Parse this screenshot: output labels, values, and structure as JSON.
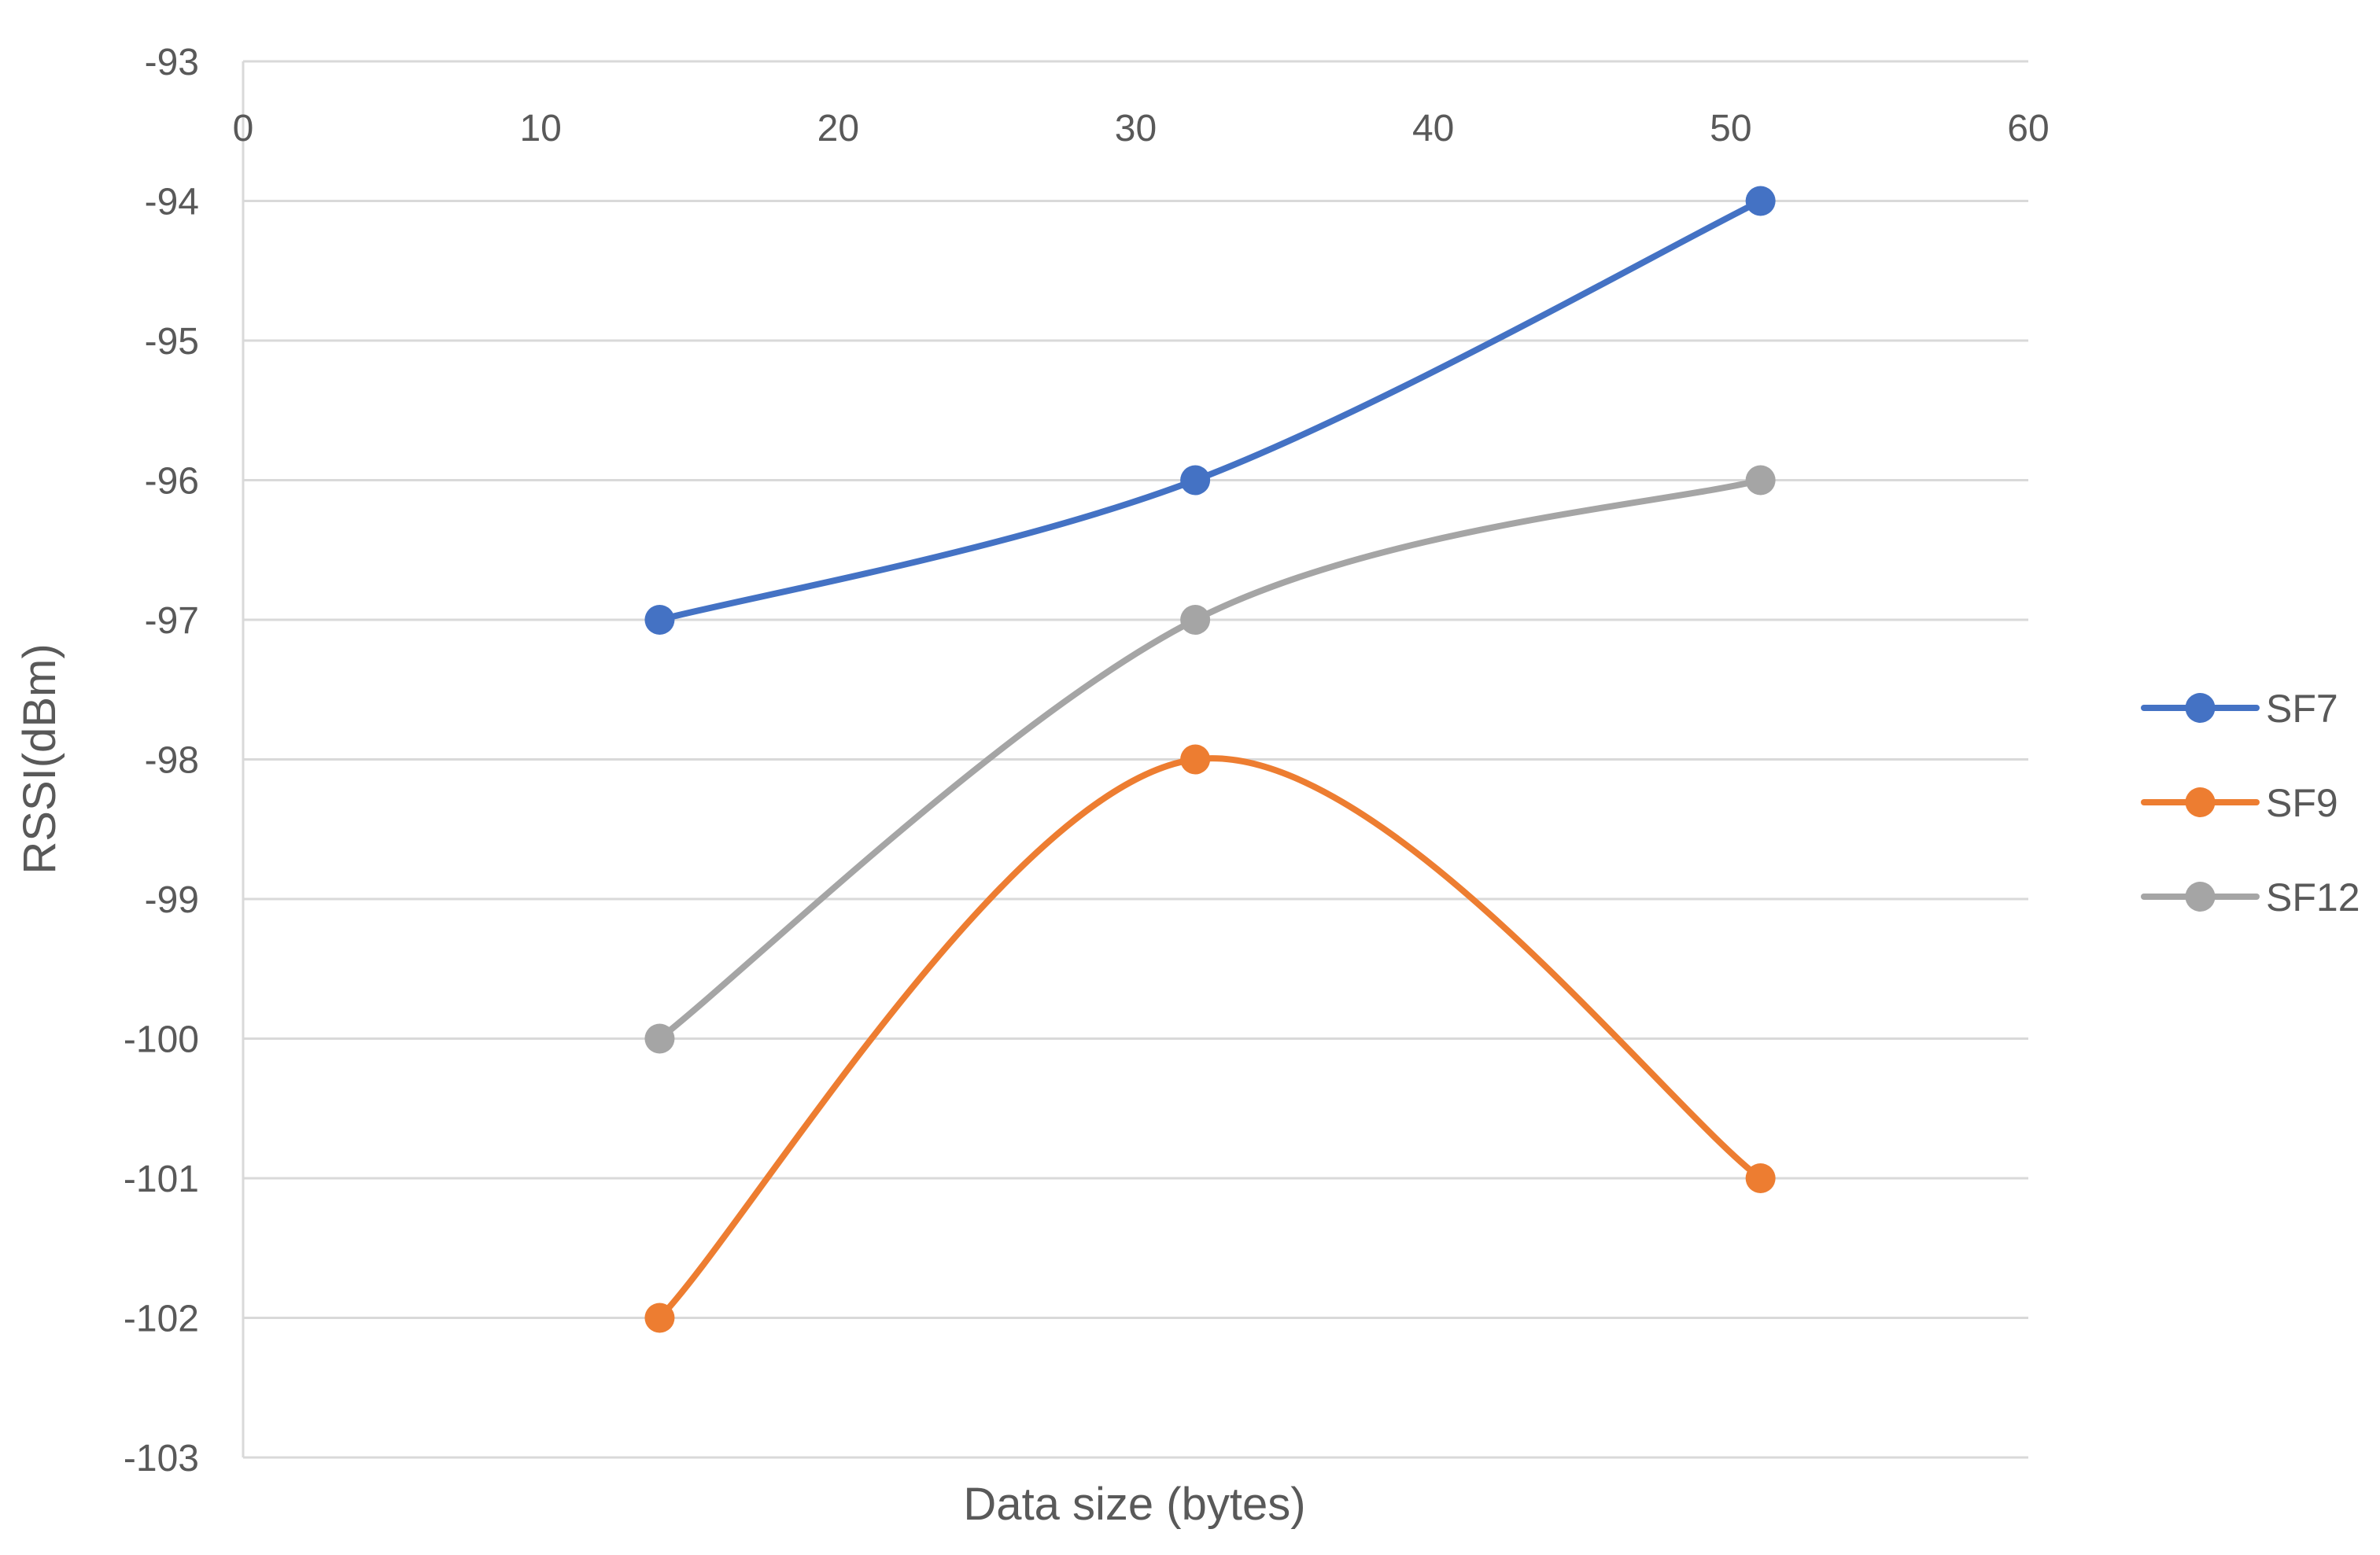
{
  "chart_data": {
    "type": "line",
    "smooth": true,
    "markers": "circle",
    "title": "",
    "xlabel": "Data size (bytes)",
    "ylabel": "RSSI(dBm)",
    "xlim": [
      0,
      60
    ],
    "ylim": [
      -103,
      -93
    ],
    "x_ticks": [
      "0",
      "10",
      "20",
      "30",
      "40",
      "50",
      "60"
    ],
    "y_ticks": [
      "-93",
      "-94",
      "-95",
      "-96",
      "-97",
      "-98",
      "-99",
      "-100",
      "-101",
      "-102",
      "-103"
    ],
    "x_axis_position": "top",
    "grid": "horizontal",
    "legend_position": "right",
    "series": [
      {
        "name": "SF7",
        "color": "#4472C4",
        "x": [
          14,
          32,
          51
        ],
        "y": [
          -97,
          -96,
          -94
        ]
      },
      {
        "name": "SF9",
        "color": "#ED7D31",
        "x": [
          14,
          32,
          51
        ],
        "y": [
          -102,
          -98,
          -101
        ]
      },
      {
        "name": "SF12",
        "color": "#A5A5A5",
        "x": [
          14,
          32,
          51
        ],
        "y": [
          -100,
          -97,
          -96
        ]
      }
    ]
  }
}
